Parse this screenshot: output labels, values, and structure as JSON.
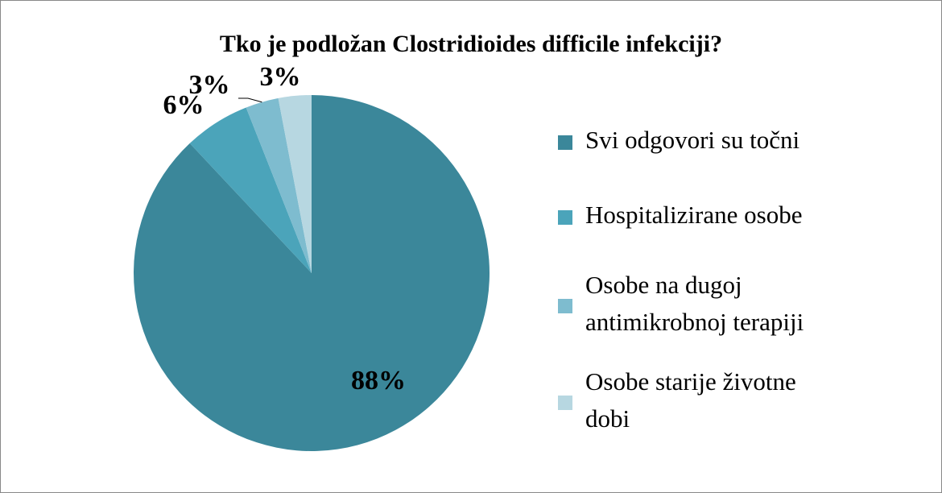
{
  "chart_data": {
    "type": "pie",
    "title": "Tko je podložan Clostridioides difficile infekciji?",
    "categories": [
      "Svi odgovori su točni",
      "Hospitalizirane osobe",
      "Osobe na dugoj antimikrobnoj terapiji",
      "Osobe starije životne dobi"
    ],
    "values": [
      88,
      6,
      3,
      3
    ],
    "value_labels": [
      "88%",
      "6%",
      "3%",
      "3%"
    ],
    "colors": [
      "#3b879a",
      "#4ba4ba",
      "#7ebccf",
      "#b7d7e1"
    ],
    "legend": "right"
  }
}
